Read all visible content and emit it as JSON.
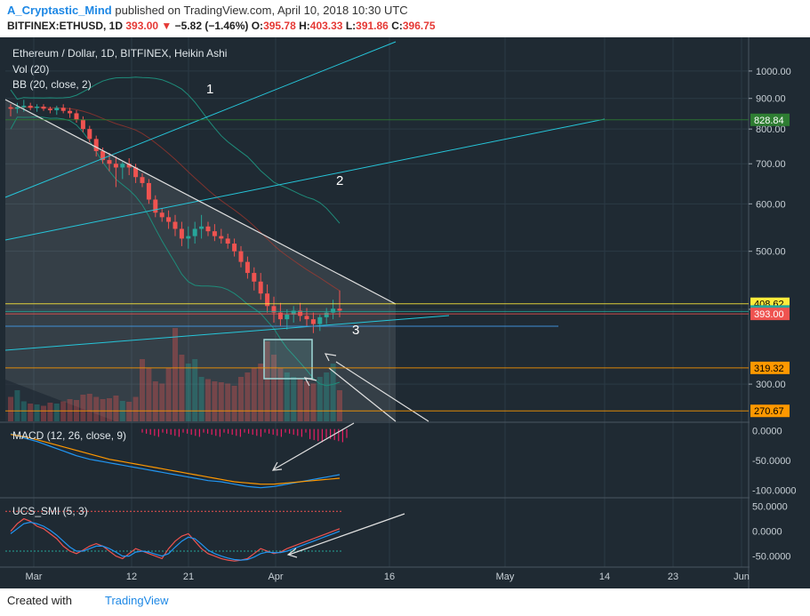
{
  "header": {
    "author": "A_Cryptastic_Mind",
    "published_text": "published on TradingView.com, April 10, 2018 10:30 UTC",
    "symbol": "BITFINEX:ETHUSD, 1D",
    "last": "393.00",
    "change": "−5.82 (−1.46%)",
    "o_label": "O:",
    "o_value": "395.78",
    "h_label": "H:",
    "h_value": "403.33",
    "l_label": "L:",
    "l_value": "391.86",
    "c_label": "C:",
    "c_value": "396.75"
  },
  "footer": {
    "created_with": "Created with",
    "brand": "TradingView"
  },
  "colors": {
    "background": "#1f2a33",
    "up": "#26a69a",
    "down": "#ef5350",
    "bb": "#1e8c7a",
    "teal_line": "#26c6da",
    "grid": "#2b3a45"
  },
  "chart_data": [
    {
      "type": "candlestick",
      "title": "Ethereum / Dollar, 1D, BITFINEX, Heikin Ashi",
      "indicators": [
        "Vol (20)",
        "BB (20, close, 2)"
      ],
      "y_scale": "log",
      "ylim": [
        260,
        1100
      ],
      "x_ticks": [
        "Mar",
        "12",
        "21",
        "Apr",
        "16",
        "May",
        "14",
        "23",
        "Jun"
      ],
      "y_ticks": [
        "1000.00",
        "900.00",
        "800.00",
        "700.00",
        "600.00",
        "500.00",
        "400.00",
        "300.00"
      ],
      "price_labels": [
        {
          "value": 828.84,
          "text": "828.84",
          "color": "#2e7d32"
        },
        {
          "value": 408.62,
          "text": "408.62",
          "color": "#ffeb3b"
        },
        {
          "value": 396.75,
          "text": "396.75",
          "color": "#26a69a"
        },
        {
          "value": 393.0,
          "text": "393.00",
          "color": "#ef5350"
        },
        {
          "value": 319.32,
          "text": "319.32",
          "color": "#ff9800"
        },
        {
          "value": 270.67,
          "text": "270.67",
          "color": "#ff9800"
        }
      ],
      "annotations": [
        "1",
        "2",
        "3"
      ],
      "candles": [
        [
          870,
          880,
          840,
          865
        ],
        [
          865,
          885,
          850,
          870
        ],
        [
          870,
          895,
          855,
          875
        ],
        [
          875,
          885,
          860,
          868
        ],
        [
          868,
          880,
          855,
          872
        ],
        [
          872,
          880,
          858,
          865
        ],
        [
          865,
          872,
          850,
          860
        ],
        [
          860,
          875,
          845,
          868
        ],
        [
          868,
          880,
          850,
          858
        ],
        [
          858,
          868,
          835,
          850
        ],
        [
          850,
          860,
          820,
          830
        ],
        [
          830,
          840,
          790,
          800
        ],
        [
          800,
          810,
          760,
          770
        ],
        [
          770,
          780,
          720,
          735
        ],
        [
          735,
          745,
          700,
          710
        ],
        [
          710,
          730,
          680,
          700
        ],
        [
          700,
          720,
          640,
          690
        ],
        [
          690,
          705,
          660,
          700
        ],
        [
          700,
          715,
          670,
          690
        ],
        [
          690,
          700,
          650,
          665
        ],
        [
          665,
          675,
          640,
          650
        ],
        [
          650,
          660,
          600,
          610
        ],
        [
          610,
          620,
          570,
          580
        ],
        [
          580,
          590,
          560,
          570
        ],
        [
          570,
          585,
          545,
          560
        ],
        [
          560,
          575,
          530,
          545
        ],
        [
          545,
          560,
          510,
          525
        ],
        [
          525,
          550,
          505,
          530
        ],
        [
          530,
          560,
          515,
          545
        ],
        [
          545,
          575,
          525,
          550
        ],
        [
          550,
          560,
          530,
          540
        ],
        [
          540,
          555,
          520,
          530
        ],
        [
          530,
          545,
          515,
          525
        ],
        [
          525,
          535,
          505,
          515
        ],
        [
          515,
          525,
          490,
          500
        ],
        [
          500,
          510,
          470,
          480
        ],
        [
          480,
          490,
          450,
          460
        ],
        [
          460,
          470,
          430,
          445
        ],
        [
          445,
          460,
          415,
          425
        ],
        [
          425,
          440,
          395,
          405
        ],
        [
          405,
          420,
          380,
          395
        ],
        [
          395,
          410,
          375,
          385
        ],
        [
          385,
          400,
          370,
          392
        ],
        [
          392,
          405,
          380,
          398
        ],
        [
          398,
          410,
          382,
          390
        ],
        [
          390,
          402,
          375,
          385
        ],
        [
          385,
          395,
          365,
          378
        ],
        [
          378,
          392,
          368,
          388
        ],
        [
          388,
          402,
          378,
          395
        ],
        [
          395,
          415,
          385,
          401
        ],
        [
          401,
          430,
          388,
          398
        ]
      ],
      "volume": [
        55,
        70,
        45,
        40,
        38,
        35,
        42,
        40,
        45,
        50,
        48,
        60,
        62,
        55,
        50,
        52,
        58,
        46,
        44,
        55,
        140,
        120,
        90,
        85,
        120,
        210,
        150,
        130,
        140,
        100,
        95,
        90,
        88,
        85,
        80,
        100,
        110,
        120,
        130,
        180,
        150,
        120,
        110,
        100,
        95,
        90,
        85,
        100,
        110,
        130,
        70
      ]
    },
    {
      "type": "line",
      "title": "MACD (12, 26, close, 9)",
      "y_ticks": [
        "0.0000",
        "-50.0000",
        "-100.0000"
      ],
      "ylim": [
        -110,
        10
      ],
      "series": [
        {
          "values": [
            -5,
            -8,
            -12,
            -15,
            -18,
            -22,
            -26,
            -30,
            -34,
            -38,
            -42,
            -45,
            -48,
            -50,
            -52,
            -54,
            -56,
            -58,
            -60,
            -62,
            -64,
            -66,
            -68,
            -70,
            -72,
            -74,
            -76,
            -78,
            -80,
            -82,
            -84,
            -85,
            -86,
            -88,
            -90,
            -92,
            -94,
            -95,
            -96,
            -95,
            -94,
            -92,
            -90,
            -88,
            -86,
            -84,
            -82,
            -80,
            -78,
            -76,
            -74
          ]
        },
        {
          "values": [
            -6,
            -8,
            -10,
            -12,
            -15,
            -18,
            -21,
            -24,
            -27,
            -30,
            -33,
            -36,
            -39,
            -42,
            -45,
            -48,
            -50,
            -52,
            -54,
            -56,
            -58,
            -60,
            -62,
            -64,
            -66,
            -68,
            -70,
            -72,
            -74,
            -76,
            -78,
            -80,
            -82,
            -84,
            -86,
            -87,
            -88,
            -89,
            -90,
            -90,
            -90,
            -89,
            -88,
            -87,
            -86,
            -85,
            -84,
            -83,
            -82,
            -81,
            -80
          ]
        }
      ]
    },
    {
      "type": "line",
      "title": "UCS_SMI (5, 3)",
      "y_ticks": [
        "50.0000",
        "0.0000",
        "-50.0000"
      ],
      "ylim": [
        -65,
        60
      ],
      "series": [
        {
          "values": [
            0,
            15,
            25,
            20,
            10,
            5,
            -5,
            -15,
            -30,
            -40,
            -45,
            -38,
            -30,
            -25,
            -30,
            -40,
            -50,
            -55,
            -45,
            -35,
            -40,
            -45,
            -50,
            -55,
            -35,
            -20,
            -10,
            -5,
            -20,
            -35,
            -45,
            -50,
            -55,
            -58,
            -60,
            -58,
            -55,
            -45,
            -35,
            -40,
            -45,
            -42,
            -35,
            -30,
            -25,
            -20,
            -15,
            -10,
            -5,
            0,
            5
          ]
        },
        {
          "values": [
            -5,
            5,
            15,
            18,
            15,
            10,
            2,
            -8,
            -20,
            -32,
            -40,
            -40,
            -35,
            -30,
            -30,
            -35,
            -42,
            -50,
            -50,
            -42,
            -40,
            -42,
            -46,
            -50,
            -45,
            -32,
            -20,
            -12,
            -15,
            -26,
            -38,
            -45,
            -50,
            -54,
            -57,
            -58,
            -57,
            -52,
            -45,
            -42,
            -43,
            -43,
            -40,
            -35,
            -30,
            -25,
            -20,
            -15,
            -10,
            -5,
            0
          ]
        }
      ]
    }
  ]
}
